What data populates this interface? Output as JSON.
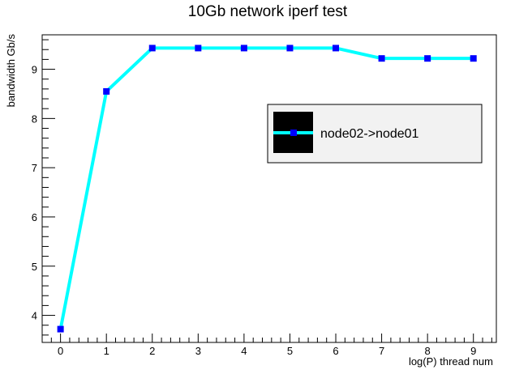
{
  "chart_data": {
    "type": "line",
    "title": "10Gb network iperf test",
    "xlabel": "log(P) thread num",
    "ylabel": "bandwidth Gb/s",
    "xlim": [
      -0.4,
      9.5
    ],
    "ylim": [
      3.45,
      9.7
    ],
    "x_ticks": [
      0,
      1,
      2,
      3,
      4,
      5,
      6,
      7,
      8,
      9
    ],
    "y_ticks": [
      4,
      5,
      6,
      7,
      8,
      9
    ],
    "grid": false,
    "legend_position": "top-right",
    "series": [
      {
        "name": "node02->node01",
        "line_color": "#00ffff",
        "marker_color": "#0000ff",
        "x": [
          0,
          1,
          2,
          3,
          4,
          5,
          6,
          7,
          8,
          9
        ],
        "y": [
          3.72,
          8.55,
          9.43,
          9.43,
          9.43,
          9.43,
          9.43,
          9.22,
          9.22,
          9.22
        ]
      }
    ]
  }
}
